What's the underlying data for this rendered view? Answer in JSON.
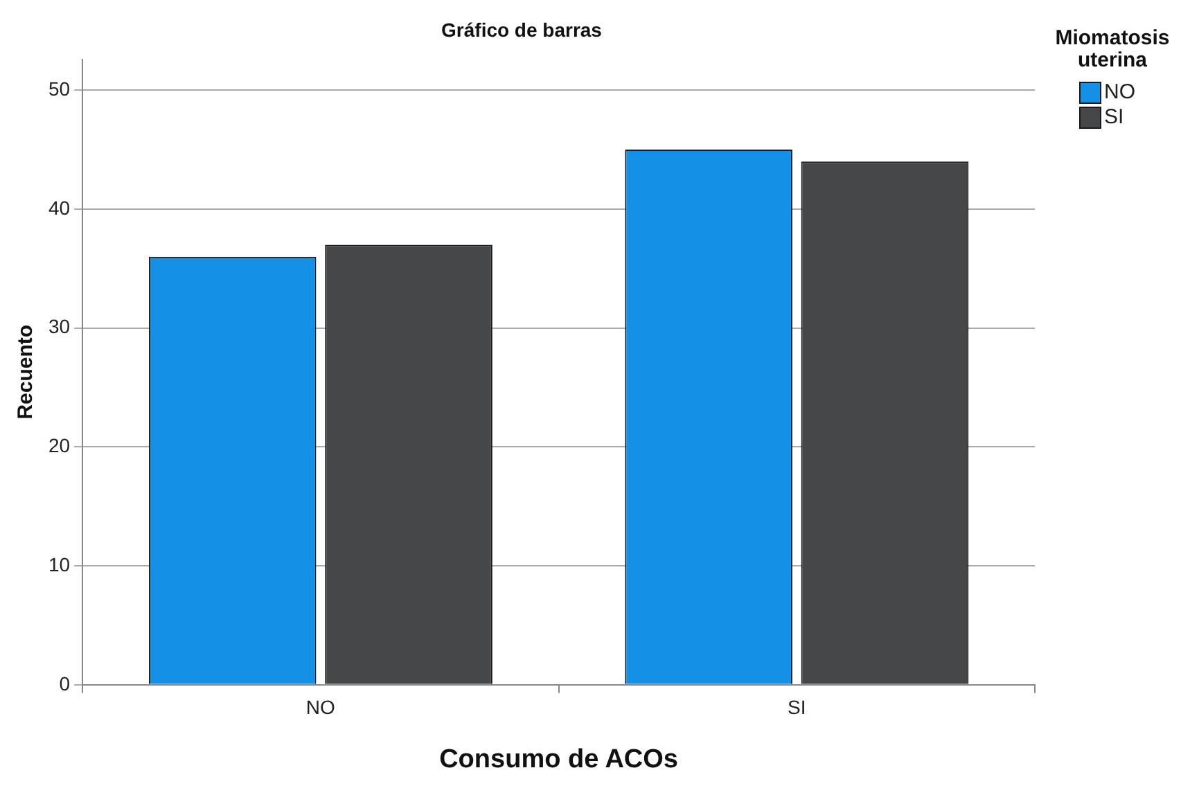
{
  "chart_data": {
    "type": "bar",
    "title": "Gráfico de barras",
    "xlabel": "Consumo de ACOs",
    "ylabel": "Recuento",
    "legend_title": "Miomatosis uterina",
    "categories": [
      "NO",
      "SI"
    ],
    "series": [
      {
        "name": "NO",
        "color": "#1490e6",
        "values": [
          36,
          45
        ]
      },
      {
        "name": "SI",
        "color": "#464749",
        "values": [
          37,
          44
        ]
      }
    ],
    "ylim": [
      0,
      52.6
    ],
    "yticks": [
      0,
      10,
      20,
      30,
      40,
      50
    ],
    "grid": "y",
    "legend": "top right"
  }
}
